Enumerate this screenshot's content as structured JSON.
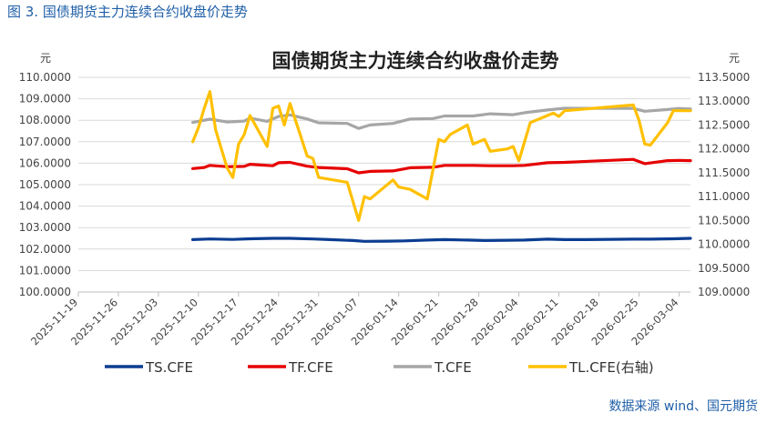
{
  "caption": "图 3.  国债期货主力连续合约收盘价走势",
  "source": "数据来源 wind、国元期货",
  "chart_data": {
    "type": "line",
    "title": "国债期货主力连续合约收盘价走势",
    "left_unit": "元",
    "right_unit": "元",
    "left_axis": {
      "min": 100,
      "max": 110,
      "step": 1,
      "decimals": 4
    },
    "right_axis": {
      "min": 109,
      "max": 113.5,
      "step": 0.5,
      "decimals": 4
    },
    "x_domain": [
      "2025-11-19",
      "2026-03-06"
    ],
    "x_ticks": [
      "2025-11-19",
      "2025-11-26",
      "2025-12-03",
      "2025-12-10",
      "2025-12-17",
      "2025-12-24",
      "2025-12-31",
      "2026-01-07",
      "2026-01-14",
      "2026-01-21",
      "2026-01-28",
      "2026-02-04",
      "2026-02-11",
      "2026-02-18",
      "2026-02-25",
      "2026-03-04"
    ],
    "grid": true,
    "legend_position": "bottom",
    "series": [
      {
        "name": "TS.CFE",
        "axis": "left",
        "color": "#0b3d91",
        "points": [
          [
            "2025-12-09",
            102.44
          ],
          [
            "2025-12-12",
            102.47
          ],
          [
            "2025-12-16",
            102.45
          ],
          [
            "2025-12-19",
            102.48
          ],
          [
            "2025-12-23",
            102.5
          ],
          [
            "2025-12-26",
            102.5
          ],
          [
            "2025-12-30",
            102.47
          ],
          [
            "2026-01-02",
            102.44
          ],
          [
            "2026-01-06",
            102.4
          ],
          [
            "2026-01-08",
            102.36
          ],
          [
            "2026-01-12",
            102.37
          ],
          [
            "2026-01-15",
            102.38
          ],
          [
            "2026-01-19",
            102.42
          ],
          [
            "2026-01-22",
            102.44
          ],
          [
            "2026-01-26",
            102.42
          ],
          [
            "2026-01-29",
            102.4
          ],
          [
            "2026-02-02",
            102.41
          ],
          [
            "2026-02-05",
            102.42
          ],
          [
            "2026-02-09",
            102.46
          ],
          [
            "2026-02-12",
            102.44
          ],
          [
            "2026-02-16",
            102.44
          ],
          [
            "2026-02-24",
            102.46
          ],
          [
            "2026-02-27",
            102.46
          ],
          [
            "2026-03-03",
            102.48
          ],
          [
            "2026-03-06",
            102.5
          ]
        ]
      },
      {
        "name": "TF.CFE",
        "axis": "left",
        "color": "#e60000",
        "points": [
          [
            "2025-12-09",
            105.75
          ],
          [
            "2025-12-11",
            105.8
          ],
          [
            "2025-12-12",
            105.9
          ],
          [
            "2025-12-15",
            105.84
          ],
          [
            "2025-12-18",
            105.85
          ],
          [
            "2025-12-19",
            105.95
          ],
          [
            "2025-12-23",
            105.88
          ],
          [
            "2025-12-24",
            106.02
          ],
          [
            "2025-12-26",
            106.04
          ],
          [
            "2025-12-29",
            105.86
          ],
          [
            "2025-12-31",
            105.8
          ],
          [
            "2026-01-05",
            105.74
          ],
          [
            "2026-01-07",
            105.55
          ],
          [
            "2026-01-09",
            105.62
          ],
          [
            "2026-01-13",
            105.64
          ],
          [
            "2026-01-16",
            105.79
          ],
          [
            "2026-01-20",
            105.81
          ],
          [
            "2026-01-22",
            105.9
          ],
          [
            "2026-01-27",
            105.9
          ],
          [
            "2026-01-30",
            105.88
          ],
          [
            "2026-02-03",
            105.88
          ],
          [
            "2026-02-05",
            105.9
          ],
          [
            "2026-02-09",
            106.02
          ],
          [
            "2026-02-12",
            106.04
          ],
          [
            "2026-02-24",
            106.18
          ],
          [
            "2026-02-26",
            105.98
          ],
          [
            "2026-03-02",
            106.12
          ],
          [
            "2026-03-04",
            106.13
          ],
          [
            "2026-03-06",
            106.12
          ]
        ]
      },
      {
        "name": "T.CFE",
        "axis": "left",
        "color": "#a6a6a6",
        "points": [
          [
            "2025-12-09",
            107.9
          ],
          [
            "2025-12-12",
            108.05
          ],
          [
            "2025-12-15",
            107.92
          ],
          [
            "2025-12-18",
            107.96
          ],
          [
            "2025-12-19",
            108.1
          ],
          [
            "2025-12-22",
            107.95
          ],
          [
            "2025-12-24",
            108.18
          ],
          [
            "2025-12-26",
            108.25
          ],
          [
            "2025-12-29",
            108.06
          ],
          [
            "2025-12-31",
            107.88
          ],
          [
            "2026-01-05",
            107.85
          ],
          [
            "2026-01-07",
            107.62
          ],
          [
            "2026-01-09",
            107.78
          ],
          [
            "2026-01-13",
            107.85
          ],
          [
            "2026-01-16",
            108.06
          ],
          [
            "2026-01-20",
            108.08
          ],
          [
            "2026-01-22",
            108.2
          ],
          [
            "2026-01-27",
            108.2
          ],
          [
            "2026-01-30",
            108.3
          ],
          [
            "2026-02-03",
            108.26
          ],
          [
            "2026-02-05",
            108.35
          ],
          [
            "2026-02-09",
            108.48
          ],
          [
            "2026-02-12",
            108.56
          ],
          [
            "2026-02-24",
            108.55
          ],
          [
            "2026-02-26",
            108.42
          ],
          [
            "2026-03-02",
            108.5
          ],
          [
            "2026-03-04",
            108.55
          ],
          [
            "2026-03-06",
            108.52
          ]
        ]
      },
      {
        "name": "TL.CFE(右轴)",
        "axis": "right",
        "color": "#ffc000",
        "points": [
          [
            "2025-12-09",
            112.15
          ],
          [
            "2025-12-10",
            112.45
          ],
          [
            "2025-12-11",
            112.85
          ],
          [
            "2025-12-12",
            113.2
          ],
          [
            "2025-12-13",
            112.4
          ],
          [
            "2025-12-15",
            111.6
          ],
          [
            "2025-12-16",
            111.4
          ],
          [
            "2025-12-17",
            112.1
          ],
          [
            "2025-12-18",
            112.3
          ],
          [
            "2025-12-19",
            112.7
          ],
          [
            "2025-12-22",
            112.05
          ],
          [
            "2025-12-23",
            112.85
          ],
          [
            "2025-12-24",
            112.9
          ],
          [
            "2025-12-25",
            112.5
          ],
          [
            "2025-12-26",
            112.95
          ],
          [
            "2025-12-29",
            111.85
          ],
          [
            "2025-12-30",
            111.8
          ],
          [
            "2025-12-31",
            111.4
          ],
          [
            "2026-01-05",
            111.3
          ],
          [
            "2026-01-07",
            110.5
          ],
          [
            "2026-01-08",
            111.0
          ],
          [
            "2026-01-09",
            110.95
          ],
          [
            "2026-01-13",
            111.35
          ],
          [
            "2026-01-14",
            111.2
          ],
          [
            "2026-01-16",
            111.15
          ],
          [
            "2026-01-19",
            110.95
          ],
          [
            "2026-01-21",
            112.2
          ],
          [
            "2026-01-22",
            112.15
          ],
          [
            "2026-01-23",
            112.3
          ],
          [
            "2026-01-26",
            112.5
          ],
          [
            "2026-01-27",
            112.1
          ],
          [
            "2026-01-29",
            112.2
          ],
          [
            "2026-01-30",
            111.95
          ],
          [
            "2026-02-02",
            112.0
          ],
          [
            "2026-02-03",
            112.05
          ],
          [
            "2026-02-04",
            111.75
          ],
          [
            "2026-02-06",
            112.55
          ],
          [
            "2026-02-09",
            112.7
          ],
          [
            "2026-02-10",
            112.75
          ],
          [
            "2026-02-11",
            112.68
          ],
          [
            "2026-02-12",
            112.8
          ],
          [
            "2026-02-24",
            112.92
          ],
          [
            "2026-02-25",
            112.6
          ],
          [
            "2026-02-26",
            112.1
          ],
          [
            "2026-02-27",
            112.08
          ],
          [
            "2026-03-02",
            112.55
          ],
          [
            "2026-03-03",
            112.8
          ],
          [
            "2026-03-06",
            112.8
          ]
        ]
      }
    ]
  }
}
